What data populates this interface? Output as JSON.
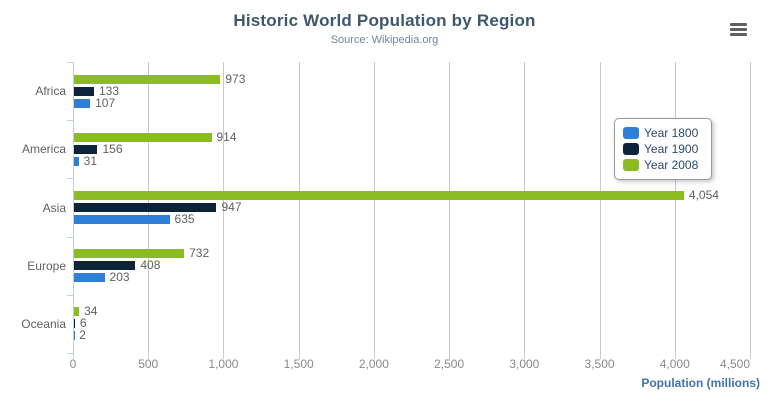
{
  "header": {
    "title": "Historic World Population by Region",
    "subtitle": "Source: Wikipedia.org"
  },
  "context_menu": {
    "icon": "hamburger-icon"
  },
  "chart_data": {
    "type": "bar",
    "orientation": "horizontal",
    "title": "Historic World Population by Region",
    "subtitle": "Source: Wikipedia.org",
    "categories": [
      "Africa",
      "America",
      "Asia",
      "Europe",
      "Oceania"
    ],
    "series": [
      {
        "name": "Year 1800",
        "color": "#2f7ed8",
        "values": [
          107,
          31,
          635,
          203,
          2
        ]
      },
      {
        "name": "Year 1900",
        "color": "#0d233a",
        "values": [
          133,
          156,
          947,
          408,
          6
        ]
      },
      {
        "name": "Year 2008",
        "color": "#8bbc21",
        "values": [
          973,
          914,
          4054,
          732,
          34
        ]
      }
    ],
    "bar_display_order_top_to_bottom": [
      "Year 2008",
      "Year 1900",
      "Year 1800"
    ],
    "data_labels": true,
    "xlabel": "Population (millions)",
    "ylabel": "",
    "xlim": [
      0,
      4500
    ],
    "tick_interval": 500,
    "x_tick_labels": [
      "0",
      "500",
      "1,000",
      "1,500",
      "2,000",
      "2,500",
      "3,000",
      "3,500",
      "4,000",
      "4,500"
    ],
    "grid": true,
    "legend_position": "right-inside",
    "legend_items": [
      "Year 1800",
      "Year 1900",
      "Year 2008"
    ],
    "colors": {
      "grid_line": "#C9C9C9",
      "axis_line": "#C0D0E0",
      "title_text": "#3E576F",
      "subtitle_text": "#6D869F",
      "axis_title_text": "#4572A7",
      "label_text": "#606060",
      "legend_text": "#274b6d"
    }
  }
}
